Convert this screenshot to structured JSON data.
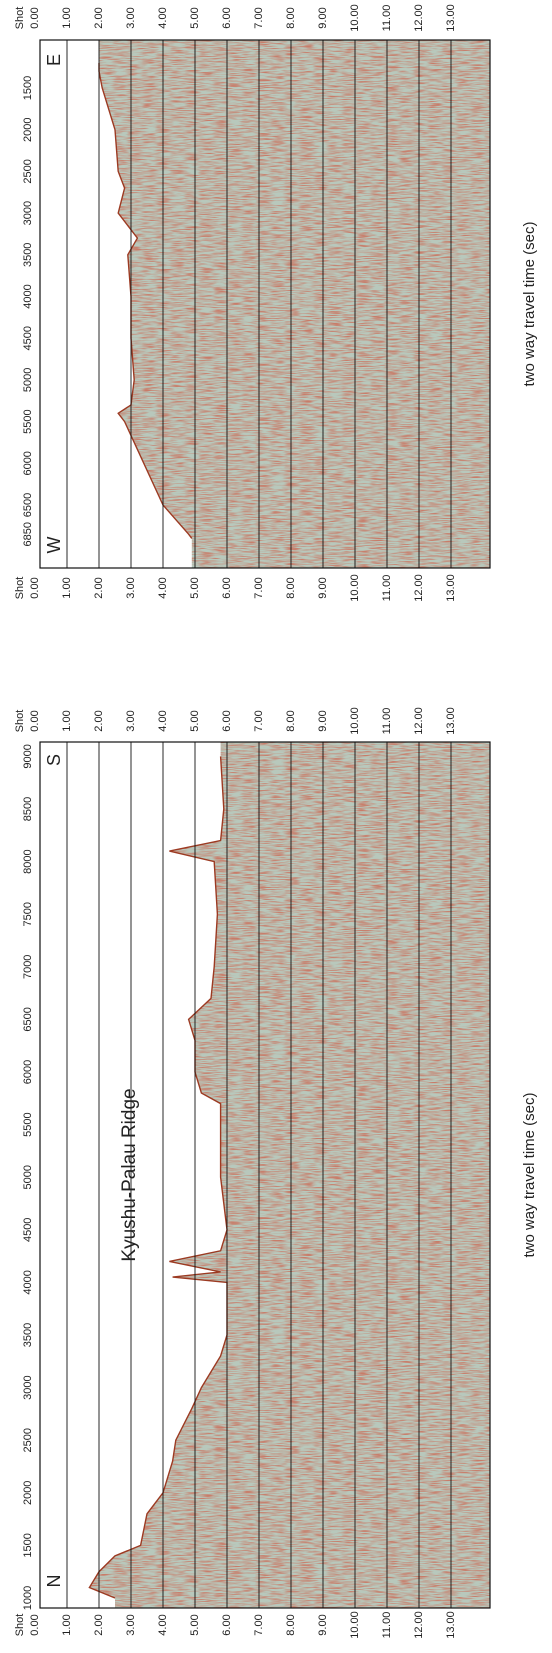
{
  "panels": [
    {
      "shot_label": "Shot",
      "shot_ticks": [
        "1000",
        "1500",
        "2000",
        "2500",
        "3000",
        "3500",
        "4000",
        "4500",
        "5000",
        "5500",
        "6000",
        "6500",
        "7000",
        "7500",
        "8000",
        "8500",
        "9000"
      ],
      "time_ticks": [
        "0.00",
        "1.00",
        "2.00",
        "3.00",
        "4.00",
        "5.00",
        "6.00",
        "7.00",
        "8.00",
        "9.00",
        "10.00",
        "11.00",
        "12.00",
        "13.00"
      ],
      "time_axis_title": "two way travel time (sec)",
      "direction_start": "N",
      "direction_end": "S",
      "annotation": "Kyushu-Palau Ridge"
    },
    {
      "shot_label": "Shot",
      "shot_ticks": [
        "6850",
        "6500",
        "6000",
        "5500",
        "5000",
        "4500",
        "4000",
        "3500",
        "3000",
        "2500",
        "2000",
        "1500"
      ],
      "time_ticks": [
        "0.00",
        "1.00",
        "2.00",
        "3.00",
        "4.00",
        "5.00",
        "6.00",
        "7.00",
        "8.00",
        "9.00",
        "10.00",
        "11.00",
        "12.00",
        "13.00"
      ],
      "time_axis_title": "two way travel time (sec)",
      "direction_start": "W",
      "direction_end": "E"
    }
  ]
}
